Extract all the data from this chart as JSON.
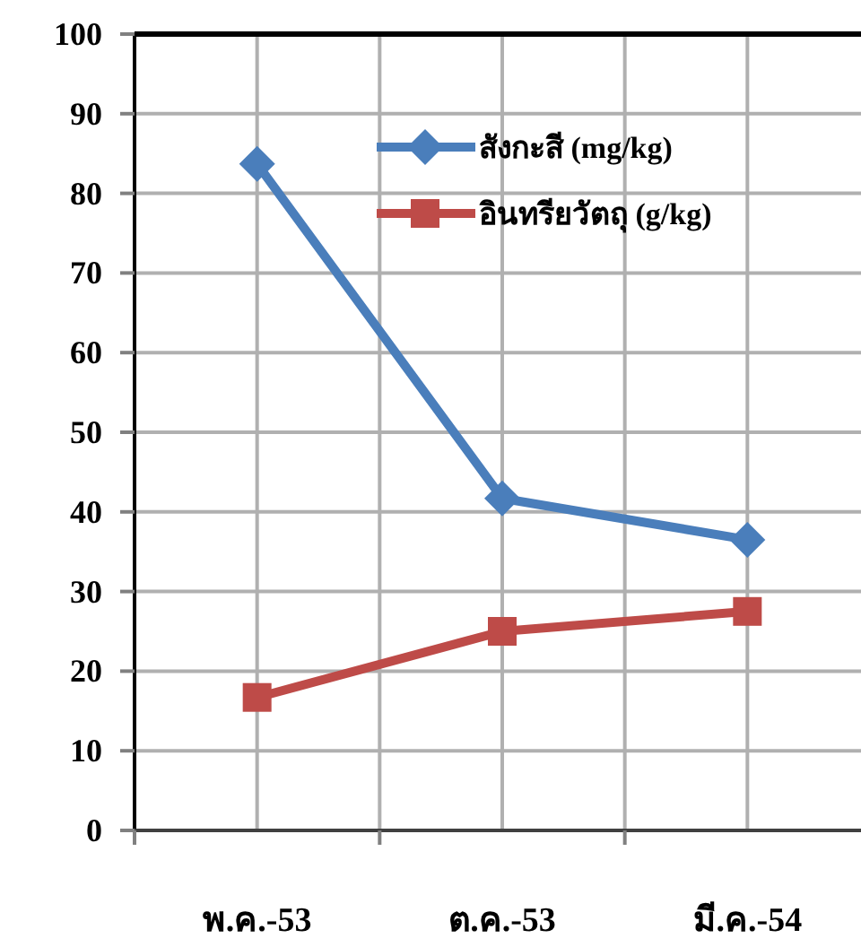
{
  "chart_data": {
    "type": "line",
    "categories": [
      "พ.ค.-53",
      "ต.ค.-53",
      "มี.ค.-54"
    ],
    "series": [
      {
        "name": "สังกะสี (mg/kg)",
        "color": "#4a7ebb",
        "marker": "diamond",
        "values": [
          83.7,
          41.7,
          36.5
        ]
      },
      {
        "name": "อินทรียวัตถุ (g/kg)",
        "color": "#be4b48",
        "marker": "square",
        "values": [
          16.7,
          25,
          27.5
        ]
      }
    ],
    "ylim": [
      0,
      100
    ],
    "yticks": [
      0,
      10,
      20,
      30,
      40,
      50,
      60,
      70,
      80,
      90,
      100
    ],
    "grid": true,
    "legend": "top"
  }
}
